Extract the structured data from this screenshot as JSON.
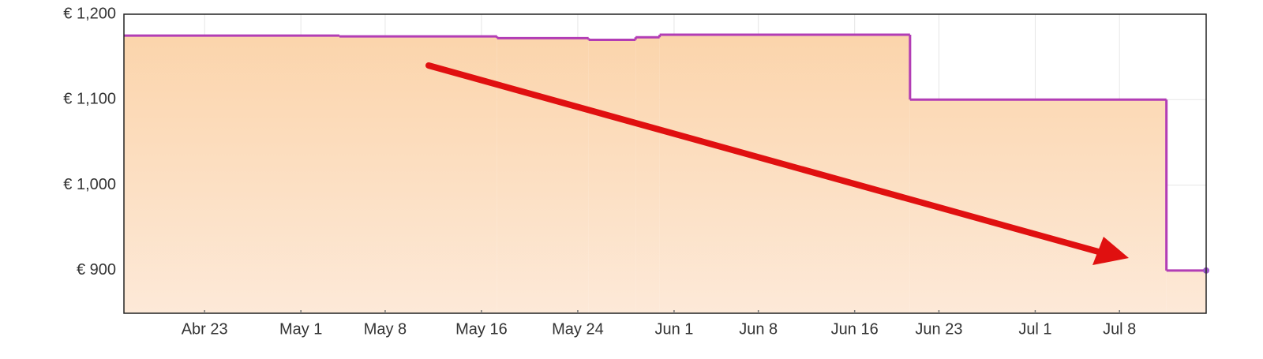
{
  "chart_data": {
    "type": "line",
    "step": "post",
    "x": [
      106.3,
      124.2,
      137.3,
      144.9,
      148.8,
      150.8,
      171.6,
      192.9,
      196.2
    ],
    "series": [
      {
        "color": "#b23db5",
        "values": [
          1175,
          1174,
          1172,
          1170,
          1173,
          1176,
          1100,
          900,
          900
        ]
      }
    ],
    "xlim": [
      106.3,
      196.2
    ],
    "xticks": [
      {
        "value": 113,
        "label": "Abr 23"
      },
      {
        "value": 121,
        "label": "May 1"
      },
      {
        "value": 128,
        "label": "May 8"
      },
      {
        "value": 136,
        "label": "May 16"
      },
      {
        "value": 144,
        "label": "May 24"
      },
      {
        "value": 152,
        "label": "Jun 1"
      },
      {
        "value": 159,
        "label": "Jun 8"
      },
      {
        "value": 167,
        "label": "Jun 16"
      },
      {
        "value": 174,
        "label": "Jun 23"
      },
      {
        "value": 182,
        "label": "Jul 1"
      },
      {
        "value": 189,
        "label": "Jul 8"
      }
    ],
    "ylim": [
      850,
      1200
    ],
    "yticks": [
      {
        "value": 900,
        "label": "€ 900"
      },
      {
        "value": 1000,
        "label": "€ 1,000"
      },
      {
        "value": 1100,
        "label": "€ 1,100"
      },
      {
        "value": 1200,
        "label": "€ 1,200"
      }
    ],
    "grid": true
  }
}
